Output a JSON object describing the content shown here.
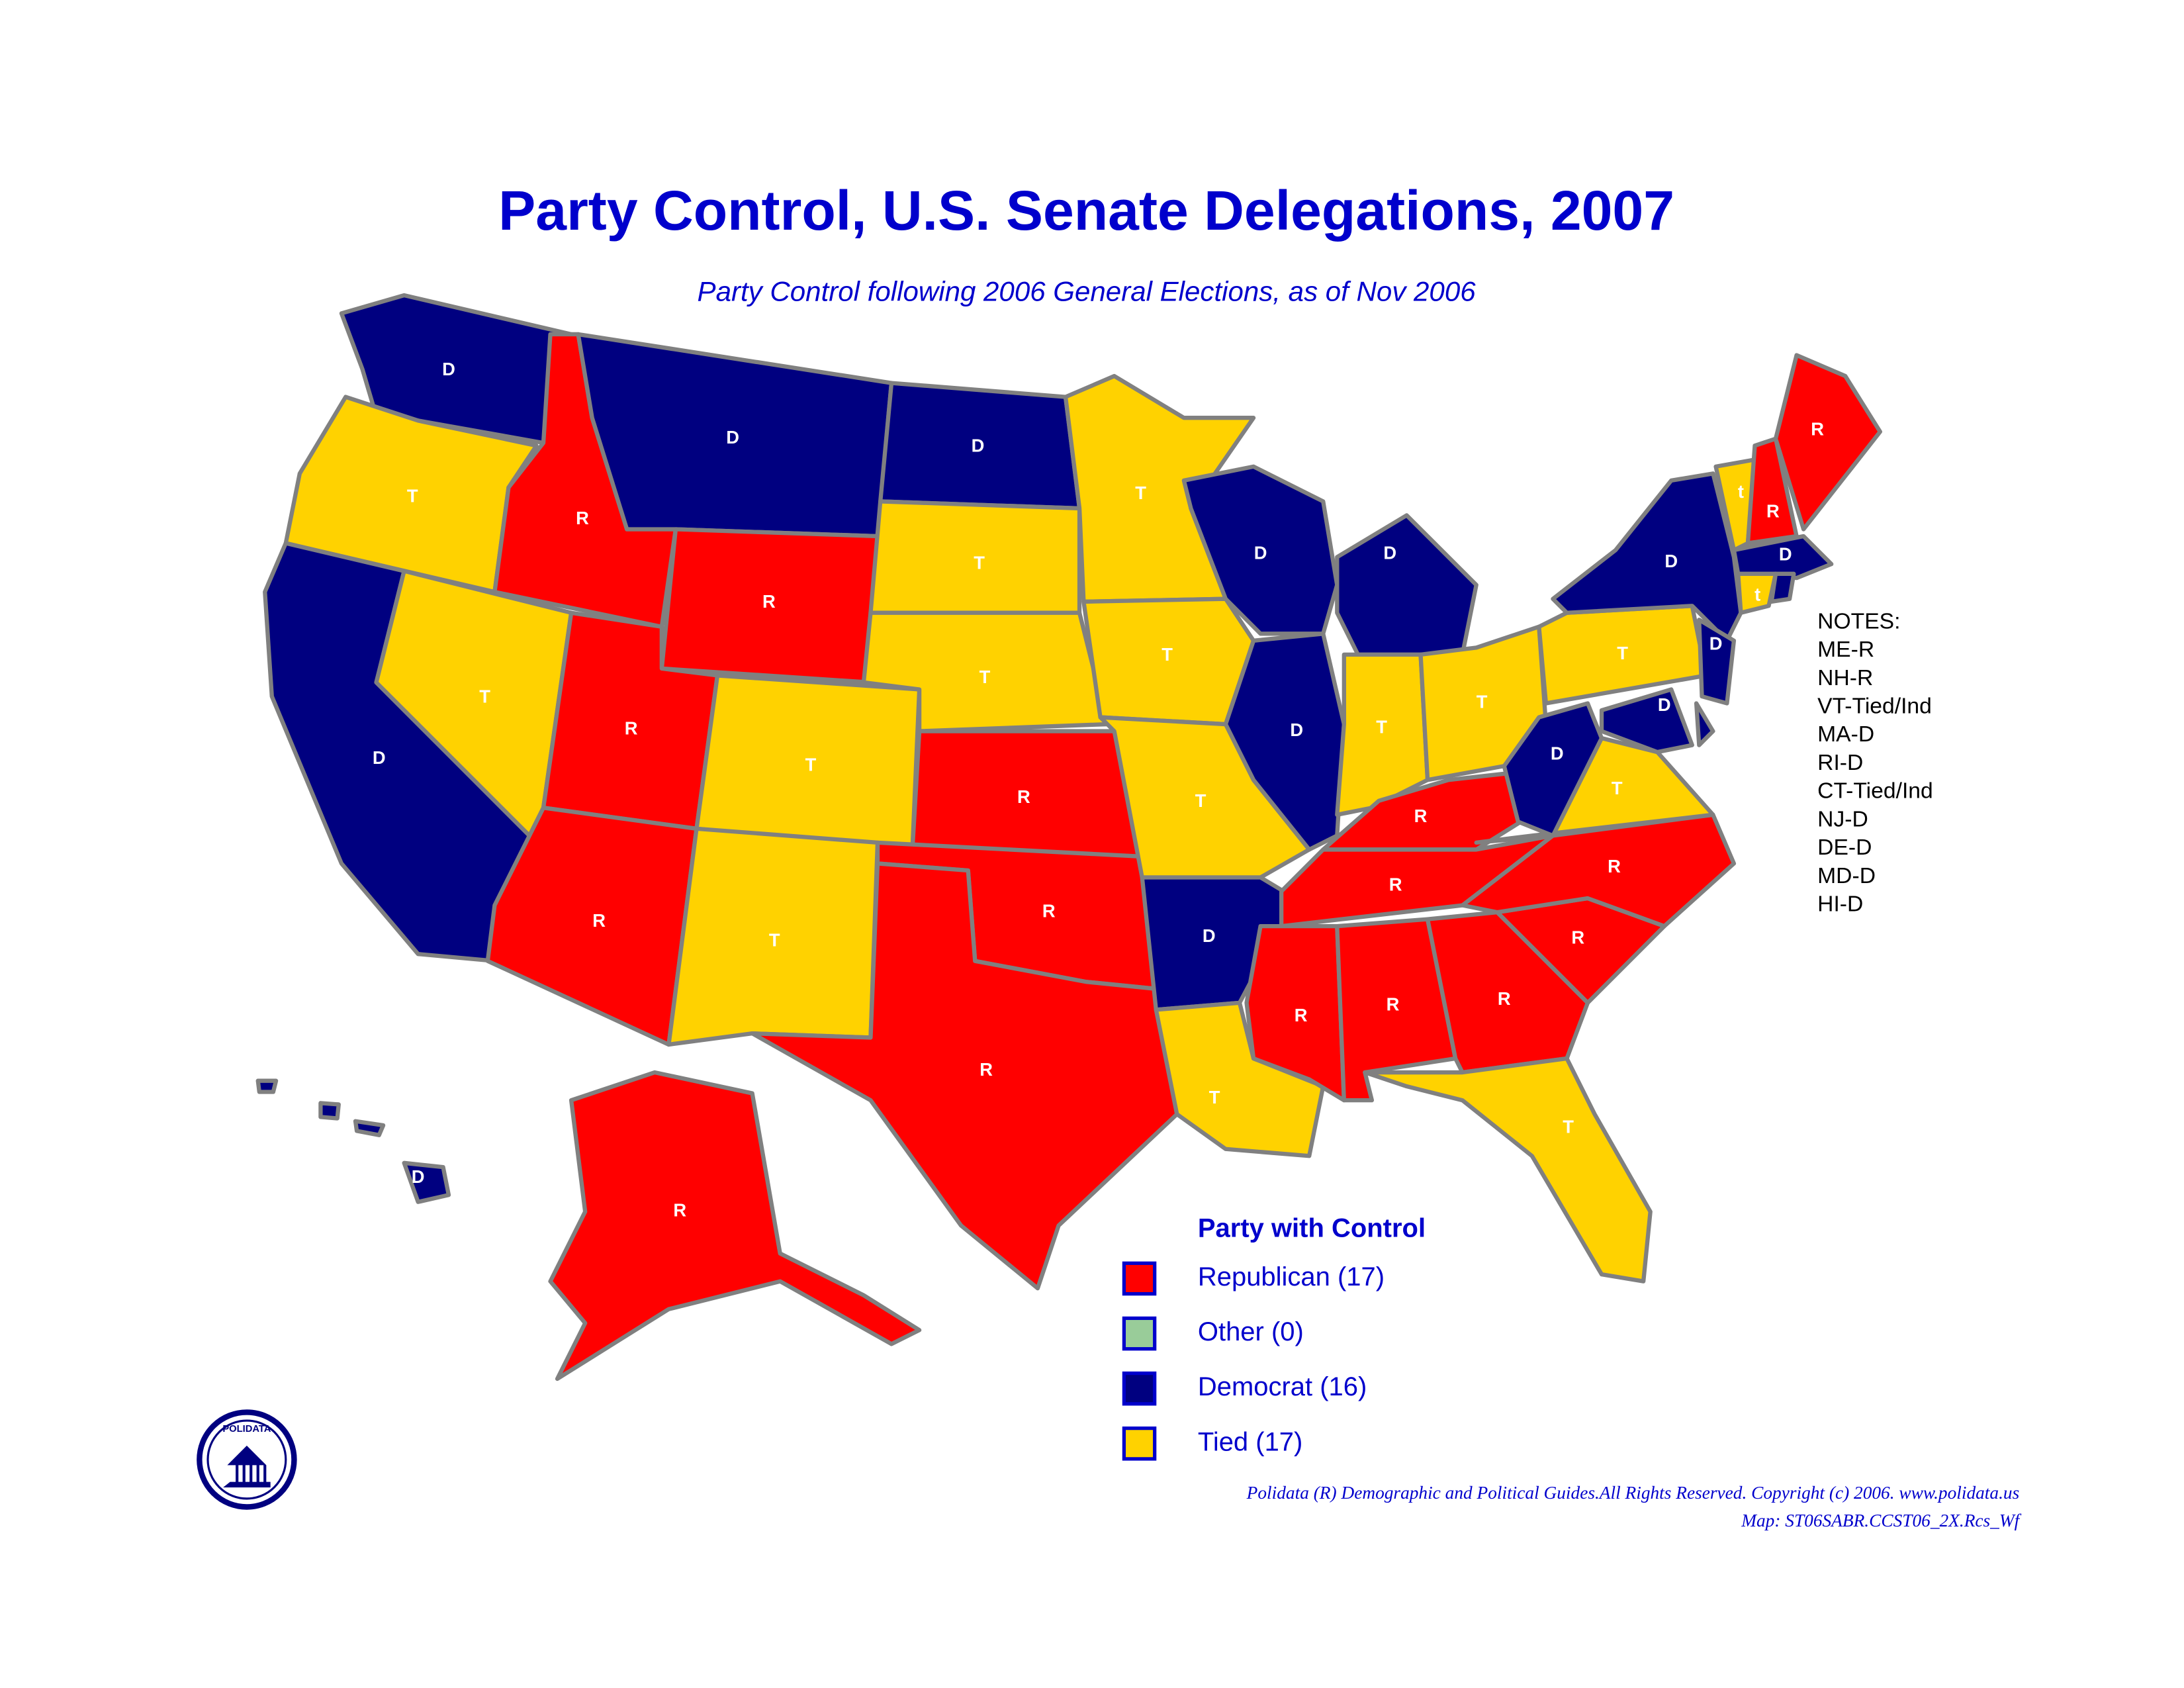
{
  "title": "Party Control, U.S. Senate Delegations, 2007",
  "subtitle": "Party Control following 2006 General Elections, as of Nov 2006",
  "states": [
    {
      "label": "D",
      "color": "#000080"
    },
    {
      "label": "T",
      "color": "#ffd200"
    },
    {
      "label": "D",
      "color": "#000080"
    },
    {
      "label": "R",
      "color": "#ff0000"
    },
    {
      "label": "T",
      "color": "#ffd200"
    },
    {
      "label": "D",
      "color": "#000080"
    },
    {
      "label": "R",
      "color": "#ff0000"
    },
    {
      "label": "R",
      "color": "#ff0000"
    },
    {
      "label": "R",
      "color": "#ff0000"
    },
    {
      "label": "T",
      "color": "#ffd200"
    },
    {
      "label": "T",
      "color": "#ffd200"
    },
    {
      "label": "D",
      "color": "#000080"
    },
    {
      "label": "T",
      "color": "#ffd200"
    },
    {
      "label": "T",
      "color": "#ffd200"
    },
    {
      "label": "R",
      "color": "#ff0000"
    },
    {
      "label": "R",
      "color": "#ff0000"
    },
    {
      "label": "R",
      "color": "#ff0000"
    },
    {
      "label": "T",
      "color": "#ffd200"
    },
    {
      "label": "T",
      "color": "#ffd200"
    },
    {
      "label": "T",
      "color": "#ffd200"
    },
    {
      "label": "D",
      "color": "#000080"
    },
    {
      "label": "T",
      "color": "#ffd200"
    },
    {
      "label": "D",
      "color": "#000080"
    },
    {
      "label": "D",
      "color": "#000080"
    },
    {
      "label": "D",
      "color": "#000080"
    },
    {
      "label": "T",
      "color": "#ffd200"
    },
    {
      "label": "T",
      "color": "#ffd200"
    },
    {
      "label": "R",
      "color": "#ff0000"
    },
    {
      "label": "R",
      "color": "#ff0000"
    },
    {
      "label": "R",
      "color": "#ff0000"
    },
    {
      "label": "R",
      "color": "#ff0000"
    },
    {
      "label": "R",
      "color": "#ff0000"
    },
    {
      "label": "T",
      "color": "#ffd200"
    },
    {
      "label": "R",
      "color": "#ff0000"
    },
    {
      "label": "R",
      "color": "#ff0000"
    },
    {
      "label": "T",
      "color": "#ffd200"
    },
    {
      "label": "D",
      "color": "#000080"
    },
    {
      "label": "T",
      "color": "#ffd200"
    },
    {
      "label": "D",
      "color": "#000080"
    },
    {
      "label": "D",
      "color": "#000080"
    },
    {
      "label": "D",
      "color": "#000080"
    },
    {
      "label": null,
      "color": "#000080"
    },
    {
      "label": "t",
      "color": "#ffd200"
    },
    {
      "label": "R",
      "color": "#ff0000"
    },
    {
      "label": "R",
      "color": "#ff0000"
    },
    {
      "label": "D",
      "color": "#000080"
    },
    {
      "label": "t",
      "color": "#ffd200"
    },
    {
      "label": null,
      "color": "#000080"
    },
    {
      "label": "R",
      "color": "#ff0000"
    },
    {
      "label": "D",
      "color": "#000080"
    }
  ],
  "notes": [
    "NOTES:",
    "ME-R",
    "NH-R",
    "VT-Tied/Ind",
    "MA-D",
    "RI-D",
    "CT-Tied/Ind",
    "NJ-D",
    "DE-D",
    "MD-D",
    "HI-D"
  ],
  "legend": {
    "title": "Party with Control",
    "items": [
      {
        "label": "Republican (17)",
        "color": "#ff0000"
      },
      {
        "label": "Other (0)",
        "color": "#99cc99"
      },
      {
        "label": "Democrat (16)",
        "color": "#000080"
      },
      {
        "label": "Tied (17)",
        "color": "#ffd200"
      }
    ]
  },
  "logo_text": "POLIDATA",
  "footer": [
    "Polidata (R) Demographic and Political Guides.All Rights Reserved. Copyright (c) 2006.  www.polidata.us",
    "Map: ST06SABR.CCST06_2X.Rcs_Wf"
  ]
}
